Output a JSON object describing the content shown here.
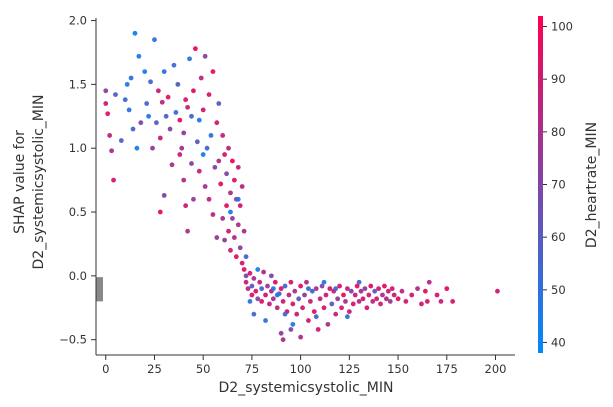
{
  "chart_data": {
    "type": "scatter",
    "xlabel": "D2_systemicsystolic_MIN",
    "ylabel_lines": [
      "SHAP value for",
      "D2_systemicsystolic_MIN"
    ],
    "xlim": [
      -5,
      210
    ],
    "ylim": [
      -0.62,
      2.02
    ],
    "x_ticks": [
      0,
      25,
      50,
      75,
      100,
      125,
      150,
      175,
      200
    ],
    "y_ticks": [
      -0.5,
      0.0,
      0.5,
      1.0,
      1.5,
      2.0
    ],
    "y_tick_labels": [
      "−0.5",
      "0.0",
      "0.5",
      "1.0",
      "1.5",
      "2.0"
    ],
    "missing_values_bar": {
      "x": -5,
      "y_range": [
        -0.2,
        -0.01
      ],
      "color": "#888888"
    },
    "colorbar": {
      "label": "D2_heartrate_MIN",
      "range": [
        38,
        102
      ],
      "ticks": [
        40,
        50,
        60,
        70,
        80,
        90,
        100
      ],
      "colors": [
        "#008afb",
        "#ff0051"
      ]
    },
    "points": [
      [
        0,
        1.45,
        75
      ],
      [
        0,
        1.35,
        88
      ],
      [
        1,
        1.27,
        92
      ],
      [
        2,
        1.1,
        85
      ],
      [
        3,
        0.98,
        80
      ],
      [
        4,
        0.75,
        90
      ],
      [
        5,
        1.42,
        60
      ],
      [
        8,
        1.06,
        55
      ],
      [
        10,
        1.38,
        52
      ],
      [
        11,
        1.5,
        45
      ],
      [
        12,
        1.3,
        48
      ],
      [
        13,
        1.55,
        50
      ],
      [
        14,
        1.15,
        55
      ],
      [
        15,
        1.9,
        42
      ],
      [
        16,
        1.0,
        45
      ],
      [
        17,
        1.72,
        47
      ],
      [
        18,
        1.2,
        70
      ],
      [
        20,
        1.6,
        45
      ],
      [
        21,
        1.35,
        55
      ],
      [
        22,
        1.25,
        48
      ],
      [
        23,
        1.52,
        55
      ],
      [
        24,
        1.0,
        75
      ],
      [
        25,
        1.85,
        50
      ],
      [
        26,
        1.2,
        60
      ],
      [
        27,
        1.45,
        90
      ],
      [
        28,
        1.08,
        88
      ],
      [
        28,
        0.5,
        95
      ],
      [
        29,
        1.36,
        85
      ],
      [
        30,
        1.6,
        48
      ],
      [
        30,
        0.63,
        70
      ],
      [
        31,
        1.25,
        55
      ],
      [
        32,
        1.4,
        92
      ],
      [
        33,
        1.15,
        70
      ],
      [
        34,
        0.87,
        80
      ],
      [
        35,
        1.65,
        52
      ],
      [
        36,
        1.28,
        50
      ],
      [
        37,
        1.5,
        60
      ],
      [
        38,
        0.95,
        88
      ],
      [
        38,
        1.22,
        95
      ],
      [
        39,
        1.0,
        80
      ],
      [
        40,
        1.12,
        75
      ],
      [
        40,
        0.75,
        82
      ],
      [
        41,
        0.55,
        90
      ],
      [
        41,
        1.38,
        92
      ],
      [
        42,
        1.32,
        88
      ],
      [
        42,
        0.35,
        80
      ],
      [
        43,
        1.7,
        50
      ],
      [
        44,
        1.25,
        55
      ],
      [
        44,
        0.88,
        70
      ],
      [
        45,
        1.45,
        95
      ],
      [
        45,
        0.6,
        75
      ],
      [
        46,
        1.78,
        100
      ],
      [
        47,
        1.05,
        60
      ],
      [
        48,
        1.22,
        45
      ],
      [
        48,
        0.82,
        88
      ],
      [
        49,
        1.55,
        85
      ],
      [
        50,
        1.3,
        90
      ],
      [
        50,
        0.95,
        42
      ],
      [
        51,
        1.72,
        70
      ],
      [
        51,
        0.7,
        80
      ],
      [
        52,
        1.0,
        55
      ],
      [
        53,
        1.42,
        92
      ],
      [
        53,
        0.6,
        88
      ],
      [
        54,
        1.1,
        48
      ],
      [
        55,
        1.6,
        95
      ],
      [
        55,
        0.48,
        85
      ],
      [
        56,
        0.85,
        70
      ],
      [
        57,
        1.2,
        90
      ],
      [
        57,
        0.3,
        75
      ],
      [
        58,
        1.35,
        60
      ],
      [
        58,
        0.9,
        82
      ],
      [
        59,
        0.72,
        95
      ],
      [
        60,
        1.1,
        88
      ],
      [
        60,
        0.45,
        80
      ],
      [
        61,
        0.95,
        92
      ],
      [
        61,
        0.28,
        75
      ],
      [
        62,
        0.8,
        70
      ],
      [
        62,
        0.55,
        95
      ],
      [
        63,
        1.0,
        85
      ],
      [
        63,
        0.35,
        90
      ],
      [
        64,
        0.65,
        80
      ],
      [
        64,
        0.2,
        88
      ],
      [
        65,
        0.9,
        100
      ],
      [
        65,
        0.45,
        75
      ],
      [
        66,
        0.75,
        92
      ],
      [
        66,
        0.3,
        85
      ],
      [
        67,
        0.6,
        70
      ],
      [
        67,
        0.15,
        95
      ],
      [
        68,
        0.85,
        88
      ],
      [
        68,
        0.4,
        80
      ],
      [
        69,
        0.55,
        90
      ],
      [
        69,
        0.22,
        75
      ],
      [
        70,
        0.7,
        85
      ],
      [
        70,
        0.1,
        92
      ],
      [
        71,
        0.35,
        80
      ],
      [
        71,
        0.05,
        95
      ],
      [
        72,
        0.0,
        70
      ],
      [
        72,
        -0.05,
        88
      ],
      [
        73,
        -0.1,
        85
      ],
      [
        74,
        0.02,
        90
      ],
      [
        75,
        -0.08,
        60
      ],
      [
        75,
        -0.15,
        95
      ],
      [
        76,
        -0.02,
        80
      ],
      [
        77,
        -0.12,
        92
      ],
      [
        78,
        -0.18,
        70
      ],
      [
        79,
        -0.05,
        88
      ],
      [
        80,
        -0.1,
        55
      ],
      [
        80,
        -0.2,
        95
      ],
      [
        81,
        0.03,
        85
      ],
      [
        82,
        -0.15,
        90
      ],
      [
        83,
        -0.08,
        75
      ],
      [
        84,
        -0.22,
        88
      ],
      [
        85,
        -0.12,
        92
      ],
      [
        85,
        0.0,
        70
      ],
      [
        86,
        -0.18,
        80
      ],
      [
        87,
        -0.05,
        95
      ],
      [
        88,
        -0.25,
        85
      ],
      [
        89,
        -0.14,
        60
      ],
      [
        90,
        -0.1,
        92
      ],
      [
        90,
        -0.45,
        75
      ],
      [
        91,
        -0.2,
        88
      ],
      [
        91,
        -0.5,
        80
      ],
      [
        92,
        -0.08,
        55
      ],
      [
        93,
        -0.28,
        90
      ],
      [
        94,
        -0.15,
        85
      ],
      [
        95,
        -0.05,
        95
      ],
      [
        95,
        -0.42,
        70
      ],
      [
        96,
        -0.22,
        92
      ],
      [
        97,
        -0.12,
        80
      ],
      [
        98,
        -0.3,
        88
      ],
      [
        99,
        -0.18,
        60
      ],
      [
        100,
        -0.08,
        95
      ],
      [
        100,
        -0.48,
        82
      ],
      [
        101,
        -0.25,
        90
      ],
      [
        102,
        -0.15,
        75
      ],
      [
        103,
        -0.05,
        85
      ],
      [
        104,
        -0.35,
        92
      ],
      [
        105,
        -0.2,
        88
      ],
      [
        106,
        -0.12,
        55
      ],
      [
        107,
        -0.28,
        95
      ],
      [
        108,
        -0.1,
        80
      ],
      [
        109,
        -0.42,
        90
      ],
      [
        110,
        -0.18,
        85
      ],
      [
        111,
        -0.08,
        70
      ],
      [
        112,
        -0.25,
        92
      ],
      [
        113,
        -0.15,
        88
      ],
      [
        114,
        -0.38,
        80
      ],
      [
        115,
        -0.1,
        95
      ],
      [
        116,
        -0.22,
        60
      ],
      [
        117,
        -0.12,
        90
      ],
      [
        118,
        -0.3,
        85
      ],
      [
        119,
        -0.18,
        75
      ],
      [
        120,
        -0.08,
        92
      ],
      [
        121,
        -0.25,
        88
      ],
      [
        122,
        -0.15,
        95
      ],
      [
        123,
        -0.2,
        80
      ],
      [
        124,
        -0.1,
        85
      ],
      [
        125,
        -0.28,
        90
      ],
      [
        126,
        -0.12,
        70
      ],
      [
        127,
        -0.22,
        92
      ],
      [
        128,
        -0.15,
        88
      ],
      [
        129,
        -0.08,
        95
      ],
      [
        130,
        -0.2,
        85
      ],
      [
        131,
        -0.12,
        80
      ],
      [
        132,
        -0.18,
        90
      ],
      [
        133,
        -0.1,
        75
      ],
      [
        134,
        -0.25,
        92
      ],
      [
        135,
        -0.15,
        88
      ],
      [
        136,
        -0.08,
        95
      ],
      [
        137,
        -0.2,
        85
      ],
      [
        138,
        -0.12,
        60
      ],
      [
        139,
        -0.18,
        90
      ],
      [
        140,
        -0.1,
        92
      ],
      [
        141,
        -0.22,
        88
      ],
      [
        142,
        -0.15,
        80
      ],
      [
        143,
        -0.08,
        95
      ],
      [
        144,
        -0.18,
        85
      ],
      [
        145,
        -0.12,
        90
      ],
      [
        146,
        -0.2,
        75
      ],
      [
        147,
        -0.1,
        92
      ],
      [
        148,
        -0.15,
        88
      ],
      [
        150,
        -0.18,
        95
      ],
      [
        152,
        -0.12,
        85
      ],
      [
        154,
        -0.2,
        90
      ],
      [
        157,
        -0.15,
        92
      ],
      [
        160,
        -0.1,
        80
      ],
      [
        162,
        -0.22,
        88
      ],
      [
        164,
        -0.12,
        95
      ],
      [
        165,
        -0.2,
        92
      ],
      [
        166,
        -0.05,
        85
      ],
      [
        170,
        -0.15,
        90
      ],
      [
        172,
        -0.2,
        88
      ],
      [
        175,
        -0.1,
        95
      ],
      [
        178,
        -0.2,
        92
      ],
      [
        201,
        -0.12,
        90
      ],
      [
        76,
        -0.3,
        55
      ],
      [
        78,
        0.05,
        45
      ],
      [
        82,
        -0.35,
        50
      ],
      [
        86,
        -0.1,
        48
      ],
      [
        92,
        -0.3,
        52
      ],
      [
        96,
        -0.38,
        46
      ],
      [
        104,
        -0.1,
        50
      ],
      [
        108,
        -0.32,
        55
      ],
      [
        112,
        -0.05,
        48
      ],
      [
        118,
        -0.1,
        52
      ],
      [
        124,
        -0.32,
        50
      ],
      [
        130,
        -0.05,
        55
      ],
      [
        68,
        0.6,
        50
      ],
      [
        64,
        0.5,
        45
      ],
      [
        72,
        0.15,
        55
      ],
      [
        74,
        -0.2,
        48
      ],
      [
        88,
        -0.15,
        46
      ]
    ]
  }
}
